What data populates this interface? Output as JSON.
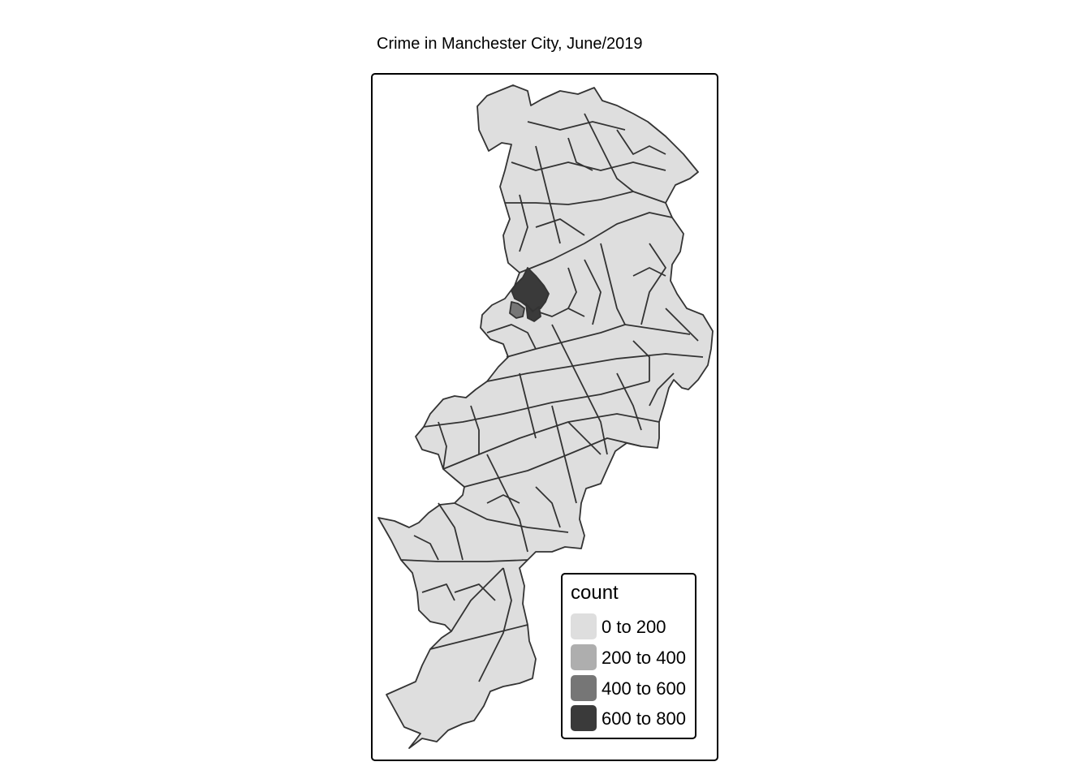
{
  "title": "Crime in Manchester City, June/2019",
  "legend": {
    "title": "count",
    "items": [
      {
        "label": "0 to 200",
        "color": "#dedede"
      },
      {
        "label": "200 to 400",
        "color": "#aeaeae"
      },
      {
        "label": "400 to 600",
        "color": "#767676"
      },
      {
        "label": "600 to 800",
        "color": "#3a3a3a"
      }
    ]
  },
  "colors": {
    "boundary": "#333333",
    "frame": "#000000",
    "background": "#ffffff"
  }
}
